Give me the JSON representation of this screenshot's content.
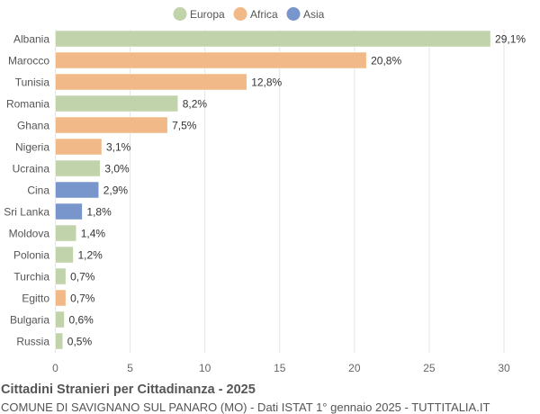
{
  "chart_data": {
    "type": "bar",
    "orientation": "horizontal",
    "title": "Cittadini Stranieri per Cittadinanza - 2025",
    "subtitle": "COMUNE DI SAVIGNANO SUL PANARO (MO) - Dati ISTAT 1° gennaio 2025 - TUTTITALIA.IT",
    "legend_position": "top",
    "legend": [
      {
        "name": "Europa",
        "color": "#c0d3ab"
      },
      {
        "name": "Africa",
        "color": "#f0b987"
      },
      {
        "name": "Asia",
        "color": "#7896cc"
      }
    ],
    "categories": [
      "Albania",
      "Marocco",
      "Tunisia",
      "Romania",
      "Ghana",
      "Nigeria",
      "Ucraina",
      "Cina",
      "Sri Lanka",
      "Moldova",
      "Polonia",
      "Turchia",
      "Egitto",
      "Bulgaria",
      "Russia"
    ],
    "groups": [
      "Europa",
      "Africa",
      "Africa",
      "Europa",
      "Africa",
      "Africa",
      "Europa",
      "Asia",
      "Asia",
      "Europa",
      "Europa",
      "Europa",
      "Africa",
      "Europa",
      "Europa"
    ],
    "values": [
      29.1,
      20.8,
      12.8,
      8.2,
      7.5,
      3.1,
      3.0,
      2.9,
      1.8,
      1.4,
      1.2,
      0.7,
      0.7,
      0.6,
      0.5
    ],
    "labels": [
      "29,1%",
      "20,8%",
      "12,8%",
      "8,2%",
      "7,5%",
      "3,1%",
      "3,0%",
      "2,9%",
      "1,8%",
      "1,4%",
      "1,2%",
      "0,7%",
      "0,7%",
      "0,6%",
      "0,5%"
    ],
    "xlim": [
      0,
      30
    ],
    "xticks": [
      "0",
      "5",
      "10",
      "15",
      "20",
      "25",
      "30"
    ],
    "grid": true
  }
}
